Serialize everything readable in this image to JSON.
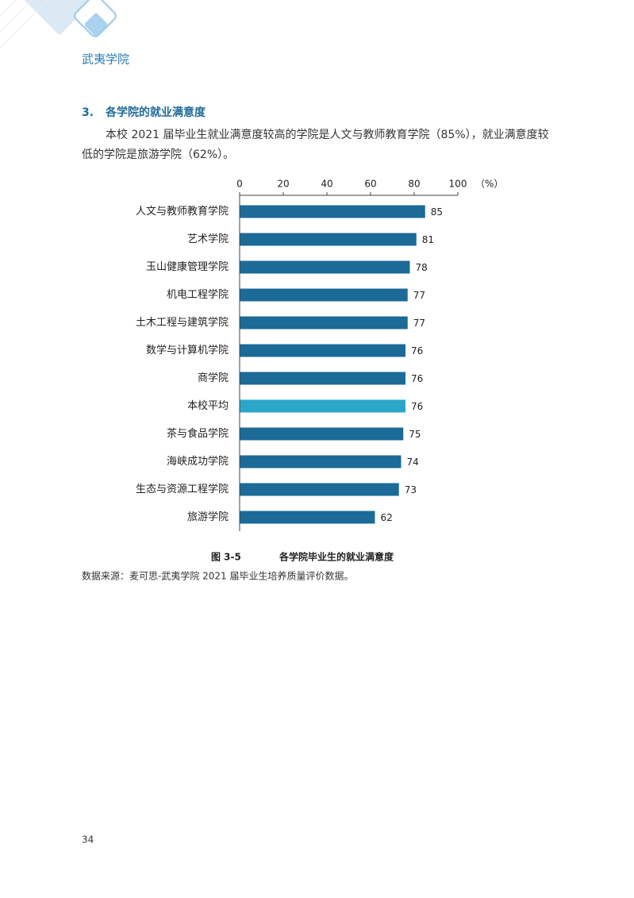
{
  "header": {
    "title": "武夷学院"
  },
  "section": {
    "number": "3.",
    "title": "各学院的就业满意度"
  },
  "body": {
    "lines": [
      "本校 2021 届毕业生就业满意度较高的学院是人文与教师教育学院（85%），就业满意度较",
      "低的学院是旅游学院（62%）。"
    ]
  },
  "chart_data": {
    "type": "hbar",
    "x_unit": "（%）",
    "categories": [
      "人文与教师教育学院",
      "艺术学院",
      "玉山健康管理学院",
      "机电工程学院",
      "土木工程与建筑学院",
      "数学与计算机学院",
      "商学院",
      "本校平均",
      "茶与食品学院",
      "海峡成功学院",
      "生态与资源工程学院",
      "旅游学院"
    ],
    "values": [
      85,
      81,
      78,
      77,
      77,
      76,
      76,
      76,
      75,
      74,
      73,
      62
    ],
    "colors": [
      "#1b6a97",
      "#1b6a97",
      "#1b6a97",
      "#1b6a97",
      "#1b6a97",
      "#1b6a97",
      "#1b6a97",
      "#2aa6c9",
      "#1b6a97",
      "#1b6a97",
      "#1b6a97",
      "#1b6a97"
    ],
    "xlim": [
      0,
      100
    ],
    "xticks": [
      0,
      20,
      40,
      60,
      80,
      100
    ]
  },
  "caption": {
    "number": "图 3-5",
    "title": "各学院毕业生的就业满意度"
  },
  "source": "数据来源：麦可思-武夷学院 2021 届毕业生培养质量评价数据。",
  "page_number": "34"
}
